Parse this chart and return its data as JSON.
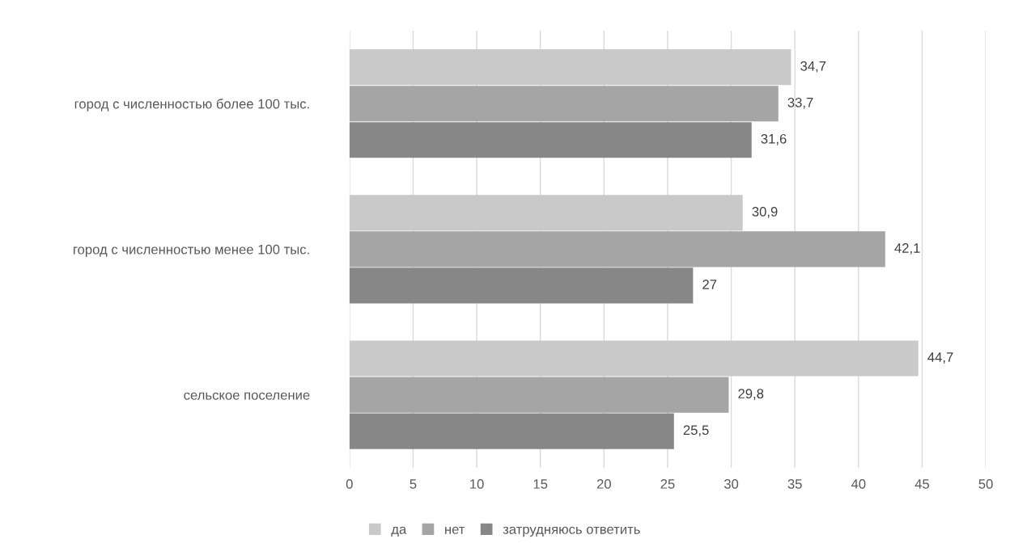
{
  "chart_data": {
    "type": "bar",
    "orientation": "horizontal",
    "categories": [
      "город с численностью более 100 тыс.",
      "город с численностью менее 100 тыс.",
      "сельское поселение"
    ],
    "series": [
      {
        "name": "да",
        "color": "#c9c9c9",
        "values": [
          34.7,
          30.9,
          44.7
        ],
        "value_labels": [
          "34,7",
          "30,9",
          "44,7"
        ]
      },
      {
        "name": "нет",
        "color": "#a5a5a5",
        "values": [
          33.7,
          42.1,
          29.8
        ],
        "value_labels": [
          "33,7",
          "42,1",
          "29,8"
        ]
      },
      {
        "name": "затрудняюсь ответить",
        "color": "#878787",
        "values": [
          31.6,
          27,
          25.5
        ],
        "value_labels": [
          "31,6",
          "27",
          "25,5"
        ]
      }
    ],
    "xlim": [
      0,
      50
    ],
    "xticks": [
      0,
      5,
      10,
      15,
      20,
      25,
      30,
      35,
      40,
      45,
      50
    ],
    "grid": "x",
    "legend": "bottom"
  }
}
